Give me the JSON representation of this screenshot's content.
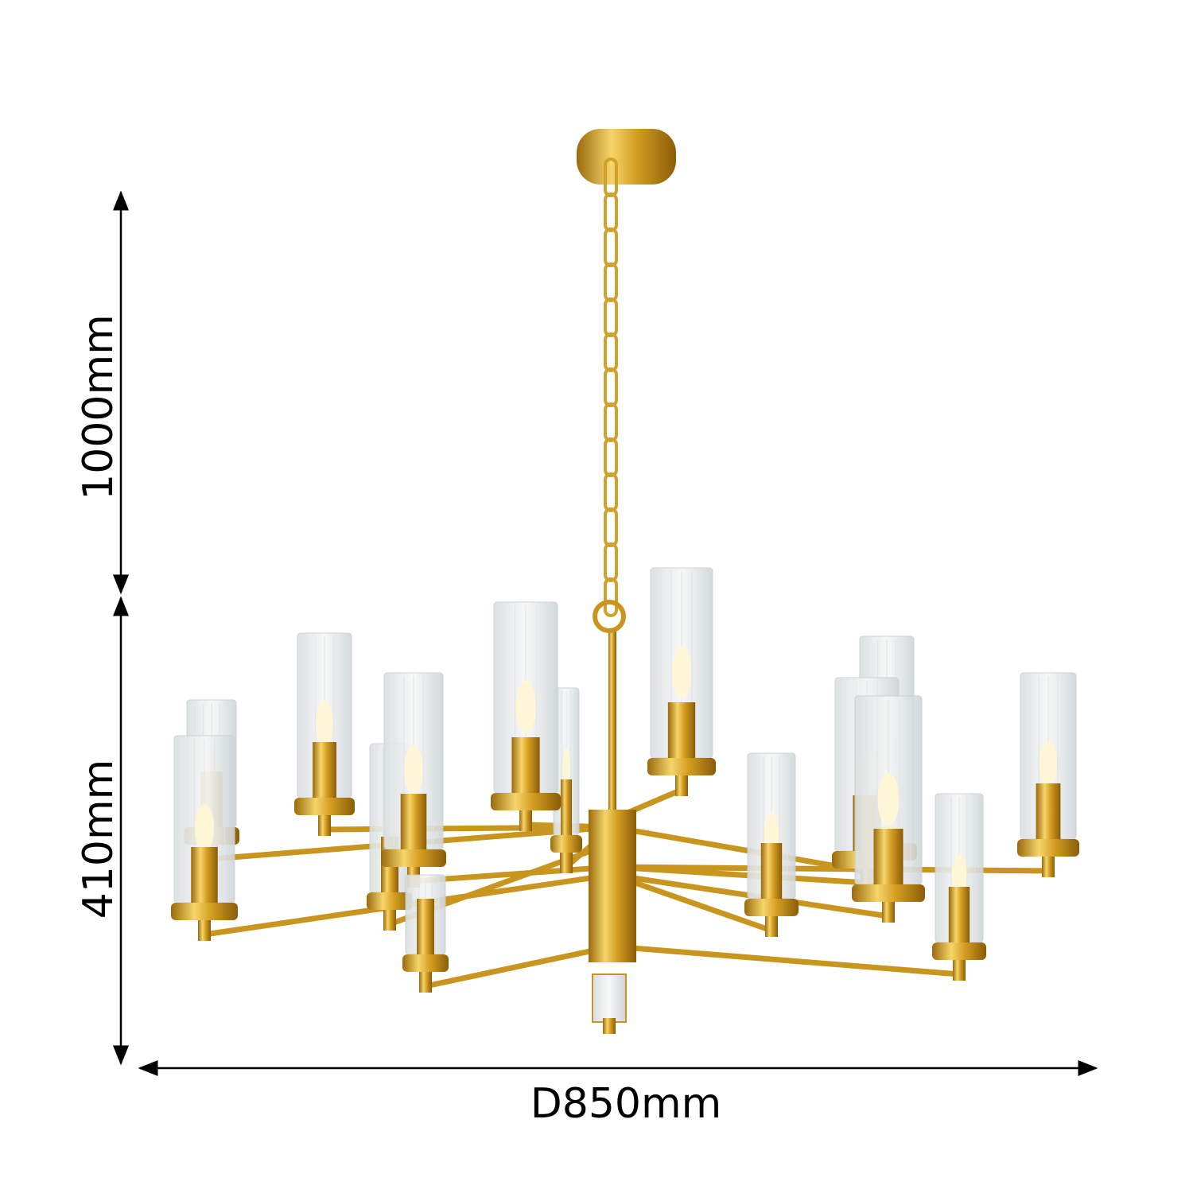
{
  "dimensions": {
    "drop_length": "1000mm",
    "body_height": "410mm",
    "diameter": "D850mm"
  },
  "product": {
    "type": "chandelier",
    "light_count": 15,
    "finish_color": "#d4a22a",
    "glass_color": "#eef1f2"
  },
  "colors": {
    "background": "#ffffff",
    "dimension_lines": "#000000"
  }
}
